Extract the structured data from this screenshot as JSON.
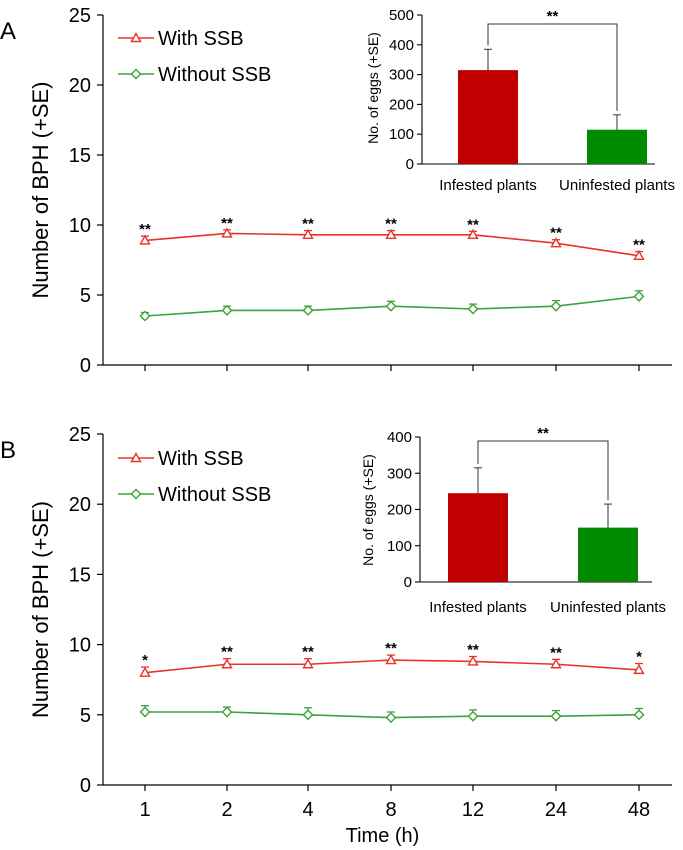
{
  "chart_data": [
    {
      "panel": "A",
      "type": "line",
      "categories": [
        "1",
        "2",
        "4",
        "8",
        "12",
        "24",
        "48"
      ],
      "ylabel": "Number of BPH (+SE)",
      "ylim": [
        0,
        25
      ],
      "yticks": [
        0,
        5,
        10,
        15,
        20,
        25
      ],
      "series": [
        {
          "name": "With SSB",
          "color": "#e8332a",
          "marker": "triangle",
          "values": [
            8.9,
            9.4,
            9.3,
            9.3,
            9.3,
            8.7,
            7.8
          ],
          "errors": [
            0.3,
            0.25,
            0.3,
            0.3,
            0.25,
            0.25,
            0.3
          ]
        },
        {
          "name": "Without SSB",
          "color": "#3aa33a",
          "marker": "diamond",
          "values": [
            3.5,
            3.9,
            3.9,
            4.2,
            4.0,
            4.2,
            4.9
          ],
          "errors": [
            0.25,
            0.3,
            0.3,
            0.35,
            0.35,
            0.4,
            0.4
          ]
        }
      ],
      "significance": [
        "**",
        "**",
        "**",
        "**",
        "**",
        "**",
        "**"
      ],
      "inset": {
        "type": "bar",
        "categories": [
          "Infested plants",
          "Uninfested plants"
        ],
        "values": [
          315,
          115
        ],
        "errors": [
          70,
          50
        ],
        "colors": [
          "#c00000",
          "#008a00"
        ],
        "ylabel": "No. of eggs (+SE)",
        "ylim": [
          0,
          500
        ],
        "yticks": [
          0,
          100,
          200,
          300,
          400,
          500
        ],
        "significance": "**"
      }
    },
    {
      "panel": "B",
      "type": "line",
      "categories": [
        "1",
        "2",
        "4",
        "8",
        "12",
        "24",
        "48"
      ],
      "xlabel": "Time (h)",
      "ylabel": "Number of BPH (+SE)",
      "ylim": [
        0,
        25
      ],
      "yticks": [
        0,
        5,
        10,
        15,
        20,
        25
      ],
      "series": [
        {
          "name": "With SSB",
          "color": "#e8332a",
          "marker": "triangle",
          "values": [
            8.0,
            8.6,
            8.6,
            8.9,
            8.8,
            8.6,
            8.2
          ],
          "errors": [
            0.4,
            0.4,
            0.4,
            0.35,
            0.35,
            0.35,
            0.45
          ]
        },
        {
          "name": "Without SSB",
          "color": "#3aa33a",
          "marker": "diamond",
          "values": [
            5.2,
            5.2,
            5.0,
            4.8,
            4.9,
            4.9,
            5.0
          ],
          "errors": [
            0.45,
            0.35,
            0.5,
            0.4,
            0.45,
            0.4,
            0.45
          ]
        }
      ],
      "significance": [
        "*",
        "**",
        "**",
        "**",
        "**",
        "**",
        "*"
      ],
      "inset": {
        "type": "bar",
        "categories": [
          "Infested plants",
          "Uninfested plants"
        ],
        "values": [
          245,
          150
        ],
        "errors": [
          70,
          65
        ],
        "colors": [
          "#c00000",
          "#008a00"
        ],
        "ylabel": "No. of eggs (+SE)",
        "ylim": [
          0,
          400
        ],
        "yticks": [
          0,
          100,
          200,
          300,
          400
        ],
        "significance": "**"
      }
    }
  ]
}
